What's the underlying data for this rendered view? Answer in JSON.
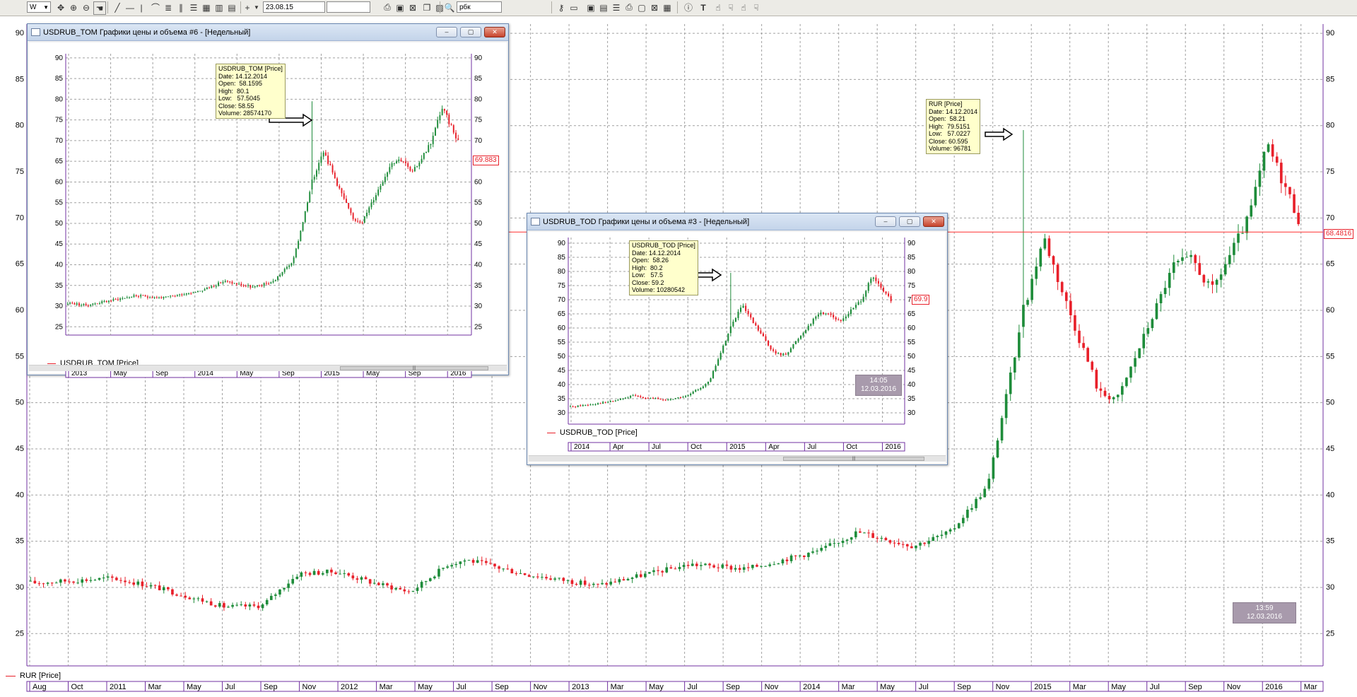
{
  "toolbar": {
    "period_value": "W",
    "date_value": "23.08.15",
    "search_value": "рбк",
    "accent": "#ecebe6"
  },
  "colors": {
    "up": "#1e8c3a",
    "down": "#e8202a",
    "grid": "#a0a0a0",
    "price_line": "#ff3030",
    "tooltip_bg": "#ffffcc",
    "clock_bg": "#a89aac",
    "axis": "#7030a0"
  },
  "main_chart": {
    "legend_label": "RUR [Price]",
    "price_label": "68.4816",
    "clock_time": "13:59",
    "clock_date": "12.03.2016",
    "tooltip": {
      "title": "RUR [Price]",
      "date": "Date: 14.12.2014",
      "open": "Open:  58.21",
      "high": "High:  79.5151",
      "low": "Low:   57.0227",
      "close": "Close: 60.595",
      "volume": "Volume: 96781"
    },
    "x_labels": [
      "Aug",
      "Oct",
      "2011",
      "Mar",
      "May",
      "Jul",
      "Sep",
      "Nov",
      "2012",
      "Mar",
      "May",
      "Jul",
      "Sep",
      "Nov",
      "2013",
      "Mar",
      "May",
      "Jul",
      "Sep",
      "Nov",
      "2014",
      "Mar",
      "May",
      "Jul",
      "Sep",
      "Nov",
      "2015",
      "Mar",
      "May",
      "Jul",
      "Sep",
      "Nov",
      "2016",
      "Mar"
    ],
    "y_ticks": [
      "25",
      "30",
      "35",
      "40",
      "45",
      "50",
      "55",
      "60",
      "65",
      "70",
      "75",
      "80",
      "85",
      "90"
    ]
  },
  "window_tom": {
    "title": "USDRUB_TOM Графики цены и объема #6 - [Недельный]",
    "legend_label": "USDRUB_TOM [Price]",
    "price_label": "69.883",
    "tooltip": {
      "title": "USDRUB_TOM [Price]",
      "date": "Date: 14.12.2014",
      "open": "Open:  58.1595",
      "high": "High:  80.1",
      "low": "Low:   57.5045",
      "close": "Close: 58.55",
      "volume": "Volume: 28574170"
    },
    "x_labels": [
      "2013",
      "May",
      "Sep",
      "2014",
      "May",
      "Sep",
      "2015",
      "May",
      "Sep",
      "2016"
    ],
    "y_ticks_left": [
      "25",
      "30",
      "35",
      "40",
      "45",
      "50",
      "55",
      "60",
      "65",
      "70",
      "75",
      "80",
      "85",
      "90"
    ],
    "y_ticks_right": [
      "25",
      "30",
      "35",
      "40",
      "45",
      "50",
      "55",
      "60",
      "65",
      "70",
      "75",
      "80",
      "85",
      "90"
    ]
  },
  "window_tod": {
    "title": "USDRUB_TOD Графики цены и объема #3 - [Недельный]",
    "legend_label": "USDRUB_TOD [Price]",
    "price_label": "69.9",
    "clock_time": "14:05",
    "clock_date": "12.03.2016",
    "tooltip": {
      "title": "USDRUB_TOD [Price]",
      "date": "Date: 14.12.2014",
      "open": "Open:  58.26",
      "high": "High:  80.2",
      "low": "Low:   57.5",
      "close": "Close: 59.2",
      "volume": "Volume: 10280542"
    },
    "x_labels": [
      "2014",
      "Apr",
      "Jul",
      "Oct",
      "2015",
      "Apr",
      "Jul",
      "Oct",
      "2016"
    ],
    "y_ticks": [
      "30",
      "35",
      "40",
      "45",
      "50",
      "55",
      "60",
      "65",
      "70",
      "75",
      "80",
      "85",
      "90"
    ]
  },
  "chart_data": {
    "type": "candlestick",
    "title": "RUR [Price]",
    "x_range": [
      "2010-08",
      "2016-03"
    ],
    "ylim": [
      22,
      91
    ],
    "grid": true,
    "series": [
      {
        "name": "RUR [Price]",
        "keypoints": [
          {
            "x": "2010-07",
            "close": 30.5
          },
          {
            "x": "2010-11",
            "close": 31.0
          },
          {
            "x": "2011-01",
            "close": 30.2
          },
          {
            "x": "2011-05",
            "close": 27.9
          },
          {
            "x": "2011-07",
            "close": 28.0
          },
          {
            "x": "2011-09",
            "close": 31.5
          },
          {
            "x": "2011-11",
            "close": 31.7
          },
          {
            "x": "2012-01",
            "close": 30.5
          },
          {
            "x": "2012-03",
            "close": 29.5
          },
          {
            "x": "2012-05",
            "close": 32.5
          },
          {
            "x": "2012-06",
            "close": 33.0
          },
          {
            "x": "2012-09",
            "close": 31.5
          },
          {
            "x": "2013-01",
            "close": 30.2
          },
          {
            "x": "2013-06",
            "close": 32.5
          },
          {
            "x": "2013-09",
            "close": 32.0
          },
          {
            "x": "2014-01",
            "close": 34.0
          },
          {
            "x": "2014-03",
            "close": 36.0
          },
          {
            "x": "2014-06",
            "close": 34.5
          },
          {
            "x": "2014-08",
            "close": 36.0
          },
          {
            "x": "2014-10",
            "close": 41.0
          },
          {
            "x": "2014-12",
            "close": 60.595,
            "high": 79.5151,
            "low": 57.0227,
            "open": 58.21
          },
          {
            "x": "2015-01",
            "close": 68.0
          },
          {
            "x": "2015-02",
            "close": 62.0
          },
          {
            "x": "2015-04",
            "close": 51.0
          },
          {
            "x": "2015-05",
            "close": 50.5
          },
          {
            "x": "2015-08",
            "close": 65.0
          },
          {
            "x": "2015-09",
            "close": 65.5
          },
          {
            "x": "2015-10",
            "close": 62.0
          },
          {
            "x": "2015-12",
            "close": 70.0
          },
          {
            "x": "2016-01",
            "close": 78.0
          },
          {
            "x": "2016-03",
            "close": 68.48
          }
        ]
      }
    ]
  }
}
